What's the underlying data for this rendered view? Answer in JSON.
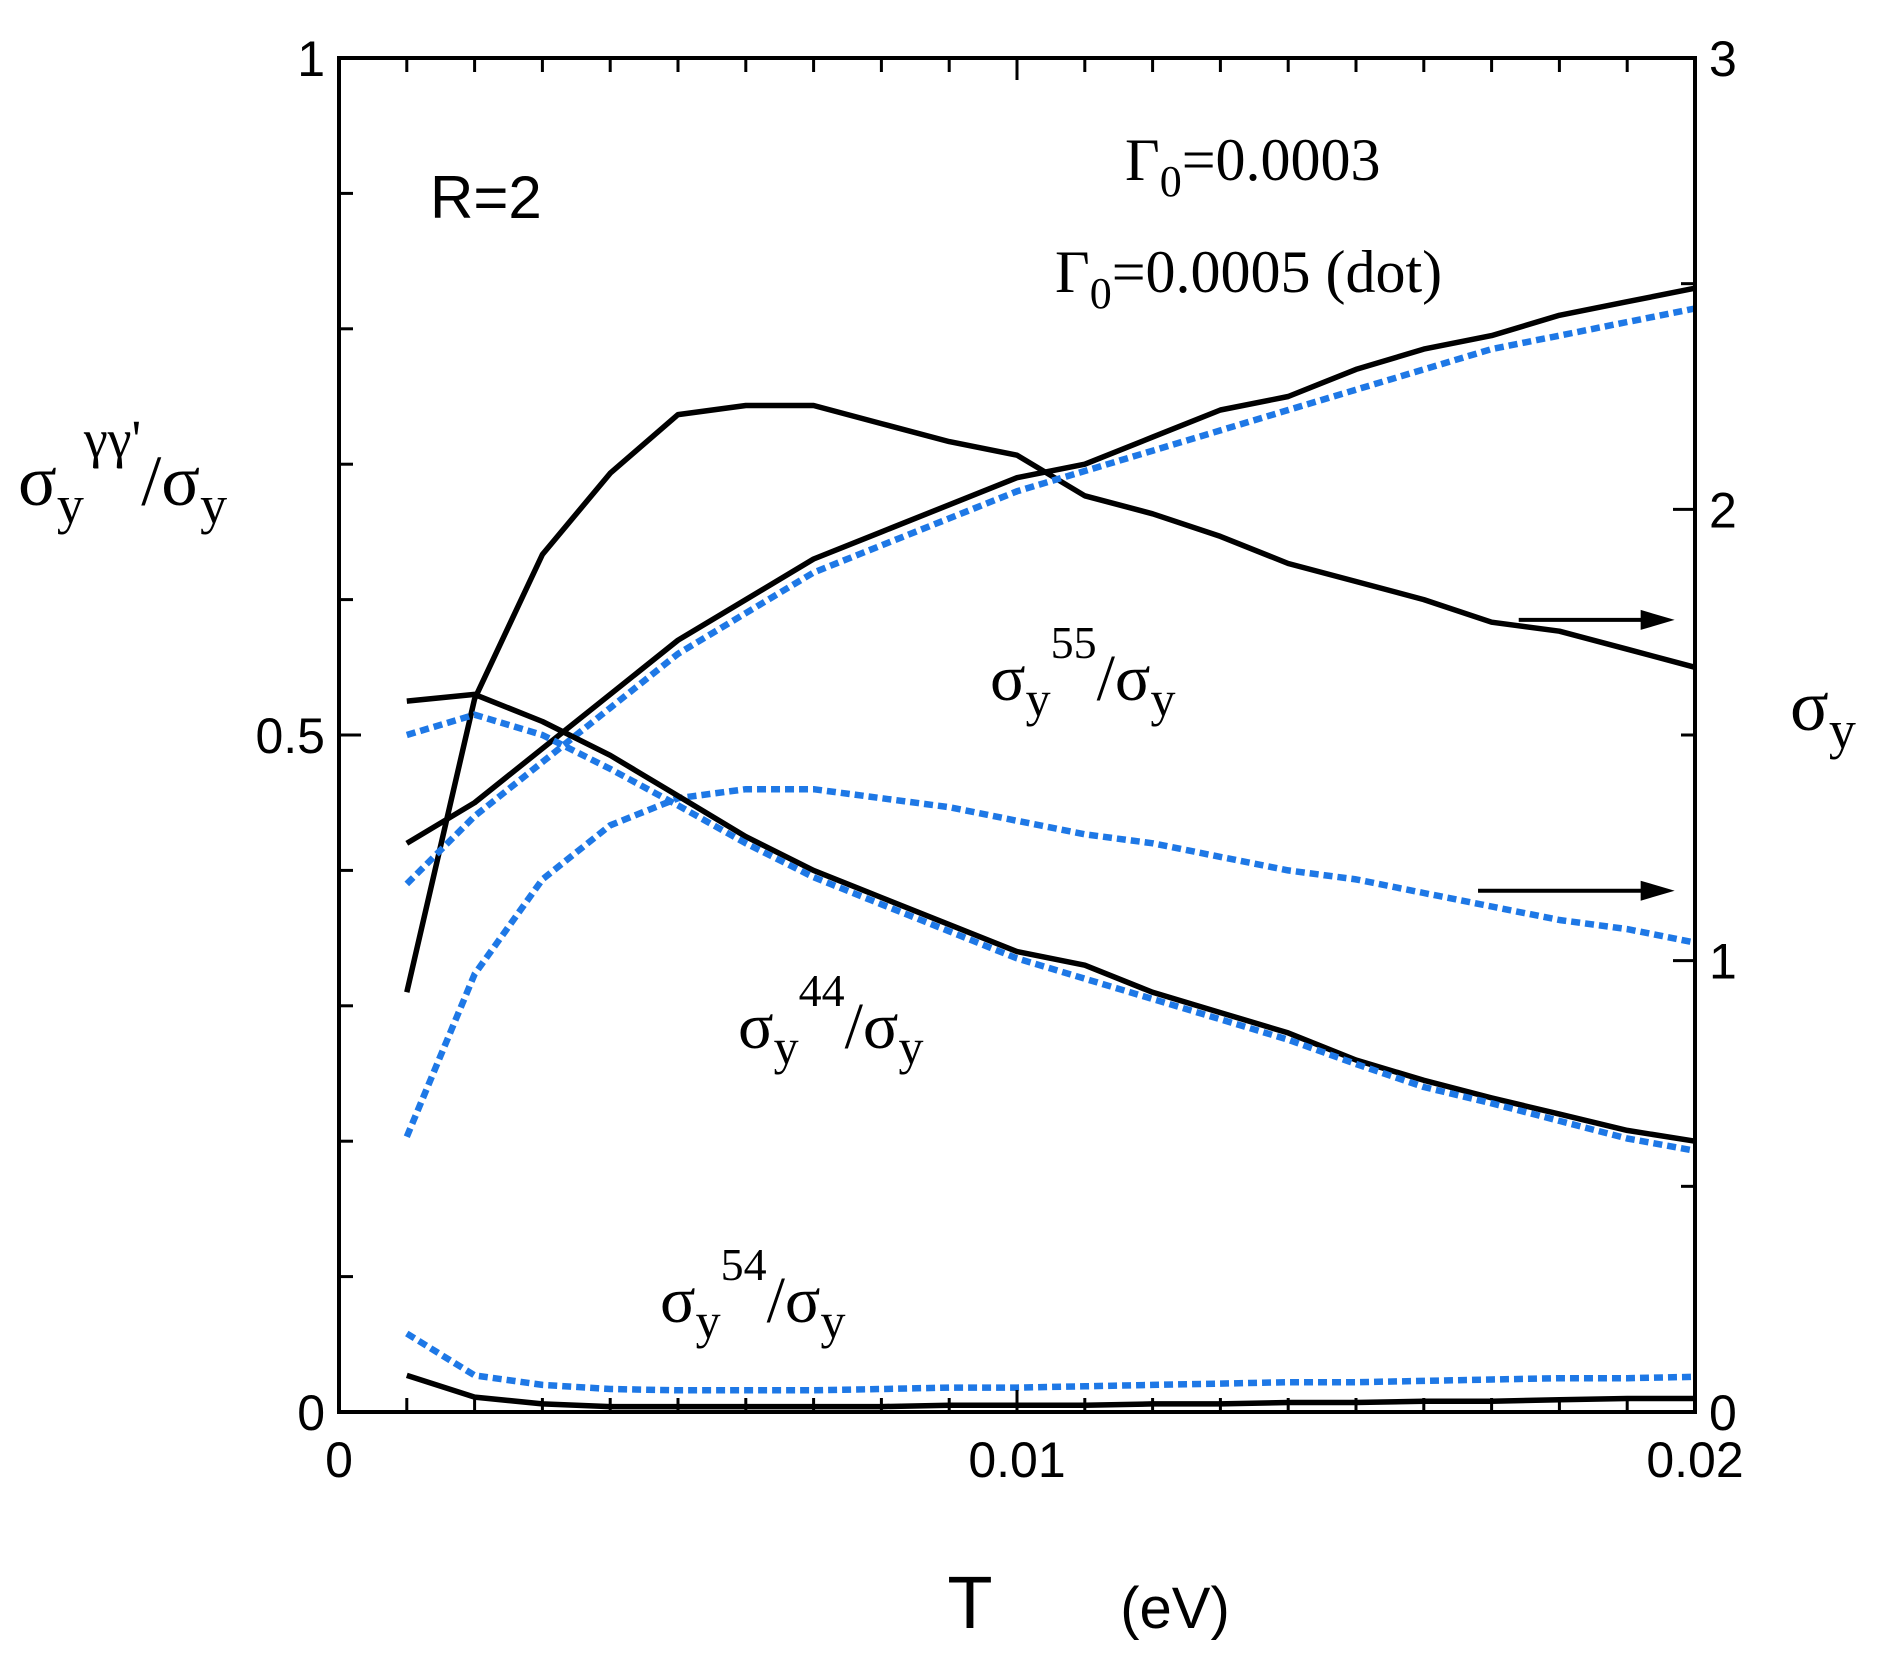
{
  "chart_data": {
    "type": "line",
    "x_axis": {
      "label": "T",
      "unit": "(eV)",
      "range": [
        0,
        0.02
      ],
      "ticks": [
        0,
        0.01,
        0.02
      ],
      "tick_labels": [
        "0",
        "0.01",
        "0.02"
      ]
    },
    "y_axis_left": {
      "label_base": "σ",
      "label_sub": "y",
      "label_sup": "γγ'",
      "label_rest": "/σ",
      "label_rest_sub": "y",
      "range": [
        0,
        1
      ],
      "ticks": [
        0,
        0.5,
        1
      ],
      "tick_labels": [
        "0",
        "0.5",
        "1"
      ]
    },
    "y_axis_right": {
      "label_base": "σ",
      "label_sub": "y",
      "range": [
        0,
        3
      ],
      "ticks": [
        0,
        1,
        2,
        3
      ],
      "tick_labels": [
        "0",
        "1",
        "2",
        "3"
      ]
    },
    "annotations": {
      "r_label": "R=2",
      "gamma1_symbol": "Γ",
      "gamma1_sub": "0",
      "gamma1_rest": "=0.0003",
      "gamma2_symbol": "Γ",
      "gamma2_sub": "0",
      "gamma2_rest": "=0.0005 (dot)",
      "curve_55": {
        "base": "σ",
        "sub": "y",
        "sup": "55",
        "rest": "/σ",
        "rest_sub": "y"
      },
      "curve_44": {
        "base": "σ",
        "sub": "y",
        "sup": "44",
        "rest": "/σ",
        "rest_sub": "y"
      },
      "curve_54": {
        "base": "σ",
        "sub": "y",
        "sup": "54",
        "rest": "/σ",
        "rest_sub": "y"
      }
    },
    "x": [
      0.001,
      0.002,
      0.003,
      0.004,
      0.005,
      0.006,
      0.007,
      0.008,
      0.009,
      0.01,
      0.011,
      0.012,
      0.013,
      0.014,
      0.015,
      0.016,
      0.017,
      0.018,
      0.019,
      0.02
    ],
    "series": [
      {
        "name": "sigma_y total (Γ0=0.0003)",
        "axis": "right",
        "style": "solid",
        "values": [
          0.93,
          1.58,
          1.9,
          2.08,
          2.21,
          2.23,
          2.23,
          2.19,
          2.15,
          2.12,
          2.03,
          1.99,
          1.94,
          1.88,
          1.84,
          1.8,
          1.75,
          1.73,
          1.69,
          1.65
        ]
      },
      {
        "name": "sigma_y total (Γ0=0.0005)",
        "axis": "right",
        "style": "dotted",
        "values": [
          0.61,
          0.97,
          1.18,
          1.3,
          1.36,
          1.38,
          1.38,
          1.36,
          1.34,
          1.31,
          1.28,
          1.26,
          1.23,
          1.2,
          1.18,
          1.15,
          1.12,
          1.09,
          1.07,
          1.04
        ]
      },
      {
        "name": "sigma_y^55/sigma_y (Γ0=0.0003)",
        "axis": "left",
        "style": "solid",
        "values": [
          0.42,
          0.45,
          0.49,
          0.53,
          0.57,
          0.6,
          0.63,
          0.65,
          0.67,
          0.69,
          0.7,
          0.72,
          0.74,
          0.75,
          0.77,
          0.785,
          0.795,
          0.81,
          0.82,
          0.83
        ]
      },
      {
        "name": "sigma_y^55/sigma_y (Γ0=0.0005)",
        "axis": "left",
        "style": "dotted",
        "values": [
          0.39,
          0.44,
          0.48,
          0.52,
          0.56,
          0.59,
          0.62,
          0.64,
          0.66,
          0.68,
          0.695,
          0.71,
          0.725,
          0.74,
          0.755,
          0.77,
          0.785,
          0.795,
          0.805,
          0.815
        ]
      },
      {
        "name": "sigma_y^44/sigma_y (Γ0=0.0003)",
        "axis": "left",
        "style": "solid",
        "values": [
          0.525,
          0.53,
          0.51,
          0.485,
          0.455,
          0.425,
          0.4,
          0.38,
          0.36,
          0.34,
          0.33,
          0.31,
          0.295,
          0.28,
          0.26,
          0.245,
          0.232,
          0.22,
          0.208,
          0.2
        ]
      },
      {
        "name": "sigma_y^44/sigma_y (Γ0=0.0005)",
        "axis": "left",
        "style": "dotted",
        "values": [
          0.5,
          0.515,
          0.5,
          0.475,
          0.448,
          0.42,
          0.395,
          0.375,
          0.355,
          0.335,
          0.32,
          0.305,
          0.29,
          0.275,
          0.257,
          0.24,
          0.228,
          0.215,
          0.202,
          0.193
        ]
      },
      {
        "name": "sigma_y^54/sigma_y (Γ0=0.0003)",
        "axis": "left",
        "style": "solid",
        "values": [
          0.027,
          0.011,
          0.006,
          0.004,
          0.004,
          0.004,
          0.004,
          0.004,
          0.005,
          0.005,
          0.005,
          0.006,
          0.006,
          0.007,
          0.007,
          0.008,
          0.008,
          0.009,
          0.01,
          0.01
        ]
      },
      {
        "name": "sigma_y^54/sigma_y (Γ0=0.0005)",
        "axis": "left",
        "style": "dotted",
        "values": [
          0.058,
          0.027,
          0.02,
          0.017,
          0.016,
          0.016,
          0.016,
          0.017,
          0.018,
          0.018,
          0.019,
          0.02,
          0.021,
          0.022,
          0.022,
          0.023,
          0.024,
          0.025,
          0.025,
          0.026
        ]
      }
    ],
    "arrows": [
      {
        "points_to": "right",
        "at_left_value": 0.585,
        "x_from": 0.0174,
        "x_to": 0.0197
      },
      {
        "points_to": "right",
        "at_left_value": 0.385,
        "x_from": 0.0168,
        "x_to": 0.0197
      }
    ],
    "colors": {
      "solid": "#000000",
      "dotted": "#1e78e6"
    }
  }
}
